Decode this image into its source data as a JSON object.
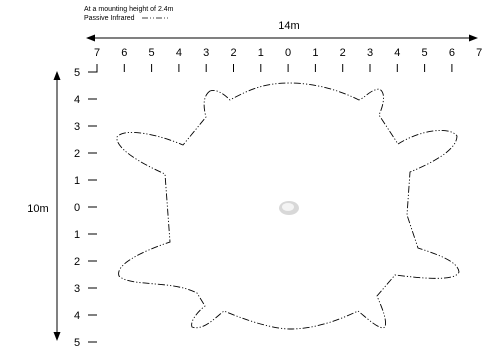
{
  "legend": {
    "note": "At a mounting height of 2.4m",
    "pattern_label": "Passive Infrared"
  },
  "dimensions": {
    "width_label": "14m",
    "height_label": "10m"
  },
  "axes": {
    "x_ticks": [
      "7",
      "6",
      "5",
      "4",
      "3",
      "2",
      "1",
      "0",
      "1",
      "2",
      "3",
      "4",
      "5",
      "6",
      "7"
    ],
    "y_ticks": [
      "5",
      "4",
      "3",
      "2",
      "1",
      "0",
      "1",
      "2",
      "3",
      "4",
      "5"
    ]
  },
  "colors": {
    "line": "#000000",
    "sensor_outer": "#d8d8d8",
    "sensor_inner": "#f4f4f4"
  }
}
